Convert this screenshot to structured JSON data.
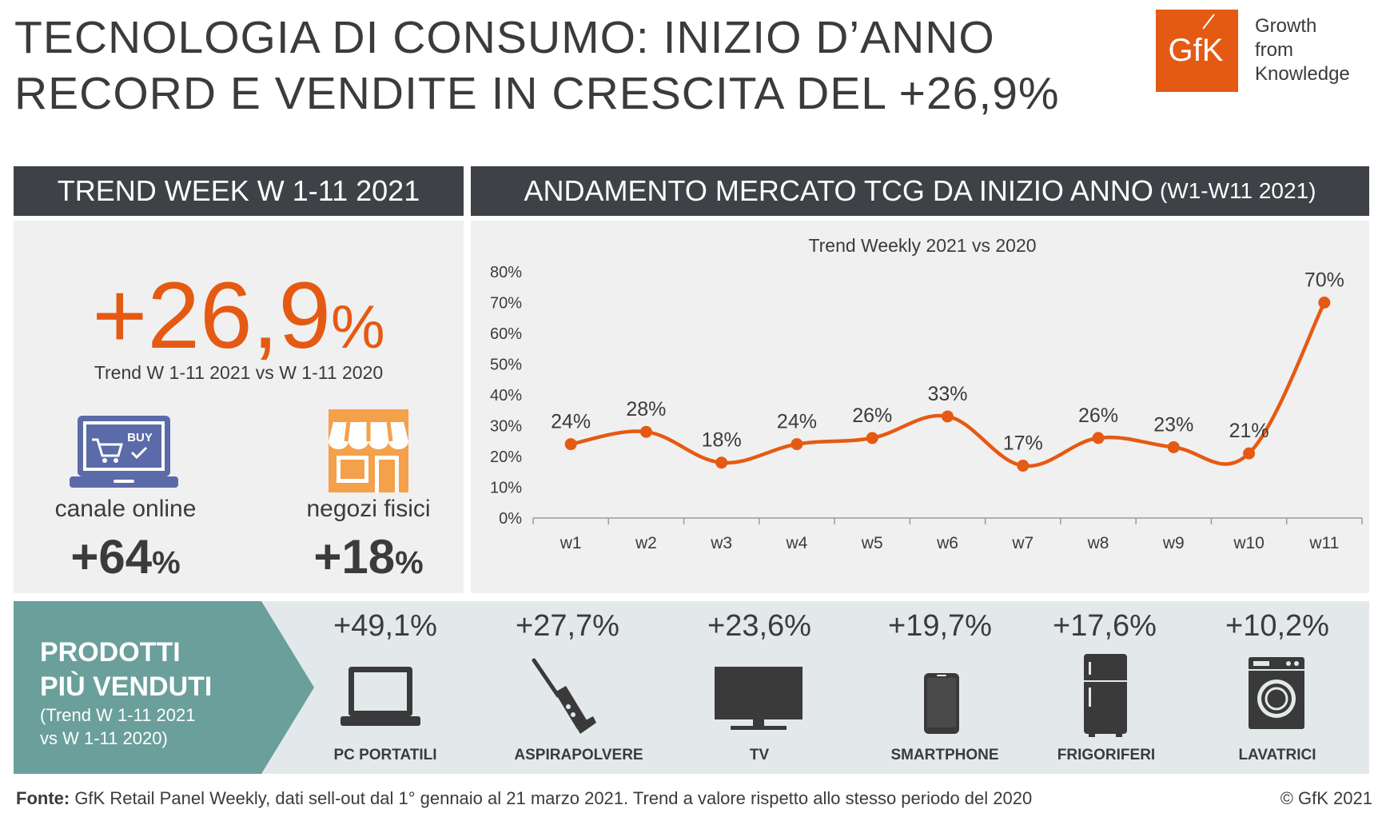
{
  "header": {
    "title_line1": "TECNOLOGIA DI CONSUMO: INIZIO D’ANNO",
    "title_line2": "RECORD E VENDITE IN CRESCITA DEL +26,9%",
    "logo_text": "GfK",
    "logo_tagline1": "Growth",
    "logo_tagline2": "from",
    "logo_tagline3": "Knowledge"
  },
  "left_panel": {
    "heading": "TREND WEEK W 1-11 2021",
    "total_value": "+26,9",
    "total_unit": "%",
    "total_caption": "Trend W 1-11 2021 vs W 1-11 2020",
    "online_icon_text": "BUY",
    "online_label": "canale online",
    "online_value": "+64",
    "online_unit": "%",
    "stores_label": "negozi fisici",
    "stores_value": "+18",
    "stores_unit": "%"
  },
  "right_panel": {
    "heading": "ANDAMENTO MERCATO TCG DA INIZIO ANNO",
    "heading_small": "(W1-W11 2021)"
  },
  "chart_data": {
    "type": "line",
    "title": "Trend Weekly 2021 vs 2020",
    "categories": [
      "w1",
      "w2",
      "w3",
      "w4",
      "w5",
      "w6",
      "w7",
      "w8",
      "w9",
      "w10",
      "w11"
    ],
    "values": [
      24,
      28,
      18,
      24,
      26,
      33,
      17,
      26,
      23,
      21,
      70
    ],
    "data_labels": [
      "24%",
      "28%",
      "18%",
      "24%",
      "26%",
      "33%",
      "17%",
      "26%",
      "23%",
      "21%",
      "70%"
    ],
    "ylim": [
      0,
      80
    ],
    "yticks": [
      0,
      10,
      20,
      30,
      40,
      50,
      60,
      70,
      80
    ],
    "ytick_labels": [
      "0%",
      "10%",
      "20%",
      "30%",
      "40%",
      "50%",
      "60%",
      "70%",
      "80%"
    ],
    "color": "#e55a13",
    "grid": false
  },
  "products": {
    "title_line1": "PRODOTTI",
    "title_line2": "PIÙ VENDUTI",
    "note_line1": "(Trend W 1-11 2021",
    "note_line2": "vs W 1-11 2020)",
    "items": [
      {
        "name": "PC PORTATILI",
        "value": "+49,1%",
        "icon": "laptop-icon"
      },
      {
        "name": "ASPIRAPOLVERE",
        "value": "+27,7%",
        "icon": "vacuum-icon"
      },
      {
        "name": "TV",
        "value": "+23,6%",
        "icon": "tv-icon"
      },
      {
        "name": "SMARTPHONE",
        "value": "+19,7%",
        "icon": "smartphone-icon"
      },
      {
        "name": "FRIGORIFERI",
        "value": "+17,6%",
        "icon": "fridge-icon"
      },
      {
        "name": "LAVATRICI",
        "value": "+10,2%",
        "icon": "washing-machine-icon"
      }
    ]
  },
  "footer": {
    "source_label": "Fonte:",
    "source_text": " GfK Retail Panel Weekly, dati sell-out dal 1° gennaio al 21 marzo 2021. Trend a valore rispetto allo stesso periodo del 2020",
    "copyright": "© GfK 2021"
  },
  "colors": {
    "accent": "#e55a13",
    "dark_header": "#3e4145",
    "panel_bg": "#f0f0f0",
    "teal": "#6a9f9b",
    "products_bg": "#e3e9ea",
    "online_blue": "#5b6aa8",
    "store_orange": "#f5a04a"
  }
}
